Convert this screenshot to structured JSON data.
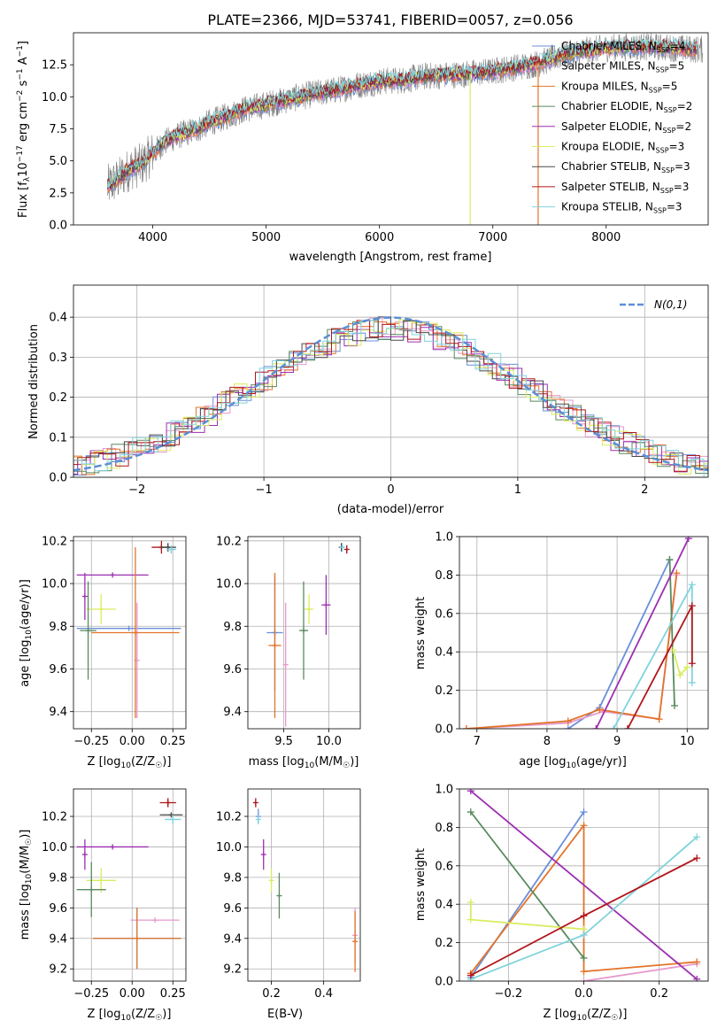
{
  "colors": {
    "chabrier_miles": "#6a8fd8",
    "salpeter_miles": "#e69acd",
    "kroupa_miles": "#e3742a",
    "chabrier_elodie": "#5a8a5f",
    "salpeter_elodie": "#9c2fb1",
    "kroupa_elodie": "#d9ec5e",
    "chabrier_stelib": "#4a4a4a",
    "salpeter_stelib": "#b0161b",
    "kroupa_stelib": "#7fd3dc",
    "data": "#808080",
    "gauss": "#5b8fd6"
  },
  "chart_data": [
    {
      "id": "spectrum",
      "type": "line",
      "title": "PLATE=2366, MJD=53741, FIBERID=0057, z=0.056",
      "xlabel": "wavelength [Angstrom, rest frame]",
      "ylabel": "Flux [f_λ 10^-17 erg cm^-2 s^-1 A^-1]",
      "xlim": [
        3300,
        8900
      ],
      "ylim": [
        0,
        15
      ],
      "xticks": [
        "4000",
        "5000",
        "6000",
        "7000",
        "8000"
      ],
      "yticks": [
        "0.0",
        "2.5",
        "5.0",
        "7.5",
        "10.0",
        "12.5"
      ],
      "grid": false,
      "legend_position": "top-right",
      "continuum": {
        "x": [
          3600,
          3700,
          3800,
          3900,
          4000,
          4100,
          4200,
          4300,
          4400,
          4500,
          4600,
          4800,
          5000,
          5200,
          5400,
          5600,
          5800,
          6000,
          6200,
          6400,
          6600,
          6800,
          7000,
          7200,
          7400,
          7600,
          7800,
          8000,
          8200,
          8400,
          8600,
          8800
        ],
        "y": [
          3.0,
          3.6,
          4.4,
          4.7,
          5.6,
          6.4,
          6.9,
          7.2,
          7.5,
          8.0,
          8.3,
          9.0,
          9.4,
          9.8,
          10.2,
          10.5,
          10.9,
          11.2,
          11.3,
          11.6,
          11.7,
          11.8,
          12.0,
          12.3,
          12.6,
          13.2,
          13.6,
          13.8,
          13.9,
          13.9,
          13.8,
          13.7
        ]
      },
      "series": [
        {
          "name": "Chabrier MILES, N_SSP=4",
          "label_base": "Chabrier MILES, N",
          "label_sub": "SSP",
          "label_tail": "=4",
          "color": "#6a8fd8"
        },
        {
          "name": "Salpeter MILES, N_SSP=5",
          "label_base": "Salpeter MILES, N",
          "label_sub": "SSP",
          "label_tail": "=5",
          "color": "#e69acd"
        },
        {
          "name": "Kroupa MILES, N_SSP=5",
          "label_base": "Kroupa MILES, N",
          "label_sub": "SSP",
          "label_tail": "=5",
          "color": "#e3742a"
        },
        {
          "name": "Chabrier ELODIE, N_SSP=2",
          "label_base": "Chabrier ELODIE, N",
          "label_sub": "SSP",
          "label_tail": "=2",
          "color": "#5a8a5f"
        },
        {
          "name": "Salpeter ELODIE, N_SSP=2",
          "label_base": "Salpeter ELODIE, N",
          "label_sub": "SSP",
          "label_tail": "=2",
          "color": "#9c2fb1"
        },
        {
          "name": "Kroupa ELODIE, N_SSP=3",
          "label_base": "Kroupa ELODIE, N",
          "label_sub": "SSP",
          "label_tail": "=3",
          "color": "#d9ec5e"
        },
        {
          "name": "Chabrier STELIB, N_SSP=3",
          "label_base": "Chabrier STELIB, N",
          "label_sub": "SSP",
          "label_tail": "=3",
          "color": "#4a4a4a"
        },
        {
          "name": "Salpeter STELIB, N_SSP=3",
          "label_base": "Salpeter STELIB, N",
          "label_sub": "SSP",
          "label_tail": "=3",
          "color": "#b0161b"
        },
        {
          "name": "Kroupa STELIB, N_SSP=3",
          "label_base": "Kroupa STELIB, N",
          "label_sub": "SSP",
          "label_tail": "=3",
          "color": "#7fd3dc"
        }
      ],
      "features": [
        {
          "x": 6800,
          "depth_to": 0.0,
          "color": "#d9ec5e"
        },
        {
          "x": 7400,
          "depth_to": 0.0,
          "color": "#e3742a"
        }
      ]
    },
    {
      "id": "residuals",
      "type": "line",
      "xlabel": "(data-model)/error",
      "ylabel": "Normed distribution",
      "xlim": [
        -2.5,
        2.5
      ],
      "ylim": [
        0,
        0.48
      ],
      "xticks": [
        "−2",
        "−1",
        "0",
        "1",
        "2"
      ],
      "yticks": [
        "0.0",
        "0.1",
        "0.2",
        "0.3",
        "0.4"
      ],
      "grid": true,
      "legend_position": "top-right",
      "legend": "N(0,1)",
      "gaussian": {
        "mean": 0,
        "sigma": 1
      }
    },
    {
      "id": "age-vs-Z",
      "type": "scatter",
      "xlabel": "Z [log10(Z/Z☉)]",
      "ylabel": "age  [log10(age/yr)]",
      "xlim": [
        -0.36,
        0.33
      ],
      "ylim": [
        9.32,
        10.22
      ],
      "xticks": [
        "−0.25",
        "0.00",
        "0.25"
      ],
      "yticks": [
        "9.4",
        "9.6",
        "9.8",
        "10.0",
        "10.2"
      ],
      "grid": true,
      "points": [
        {
          "x": 0.18,
          "y": 10.17,
          "xerr": 0.06,
          "yerr": 0.03,
          "color": "#b0161b"
        },
        {
          "x": 0.22,
          "y": 10.17,
          "xerr": 0.05,
          "yerr": 0.02,
          "color": "#4a4a4a"
        },
        {
          "x": 0.24,
          "y": 10.16,
          "xerr": 0.03,
          "yerr": 0.02,
          "color": "#7fd3dc"
        },
        {
          "x": -0.12,
          "y": 10.04,
          "xerr": 0.22,
          "yerr": 0.0,
          "color": "#9c2fb1"
        },
        {
          "x": -0.29,
          "y": 9.94,
          "xerr": 0.0,
          "yerr": 0.11,
          "color": "#9c2fb1"
        },
        {
          "x": -0.19,
          "y": 9.88,
          "xerr": 0.09,
          "yerr": 0.07,
          "color": "#d9ec5e"
        },
        {
          "x": -0.02,
          "y": 9.79,
          "xerr": 0.32,
          "yerr": 0.0,
          "color": "#6a8fd8"
        },
        {
          "x": -0.27,
          "y": 9.78,
          "xerr": 0.05,
          "yerr": 0.23,
          "color": "#5a8a5f"
        },
        {
          "x": 0.03,
          "y": 9.64,
          "xerr": 0.0,
          "yerr": 0.27,
          "color": "#e69acd"
        },
        {
          "x": 0.02,
          "y": 9.77,
          "xerr": 0.27,
          "yerr": 0.4,
          "color": "#e3742a"
        }
      ]
    },
    {
      "id": "age-vs-mass",
      "type": "scatter",
      "xlabel": "mass [log10(M/M☉)]",
      "ylabel": "",
      "xlim": [
        9.1,
        10.35
      ],
      "ylim": [
        9.32,
        10.22
      ],
      "xticks": [
        "9.5",
        "10.0"
      ],
      "yticks": [
        "9.4",
        "9.6",
        "9.8",
        "10.0",
        "10.2"
      ],
      "grid": true,
      "points": [
        {
          "x": 10.14,
          "y": 10.17,
          "xerr": 0.0,
          "yerr": 0.02,
          "color": "#4a4a4a"
        },
        {
          "x": 10.15,
          "y": 10.17,
          "xerr": 0.0,
          "yerr": 0.02,
          "color": "#7fd3dc"
        },
        {
          "x": 10.2,
          "y": 10.16,
          "xerr": 0.0,
          "yerr": 0.02,
          "color": "#b0161b"
        },
        {
          "x": 9.97,
          "y": 9.9,
          "xerr": 0.05,
          "yerr": 0.14,
          "color": "#9c2fb1"
        },
        {
          "x": 9.78,
          "y": 9.88,
          "xerr": 0.05,
          "yerr": 0.07,
          "color": "#d9ec5e"
        },
        {
          "x": 9.72,
          "y": 9.78,
          "xerr": 0.05,
          "yerr": 0.23,
          "color": "#5a8a5f"
        },
        {
          "x": 9.52,
          "y": 9.62,
          "xerr": 0.0,
          "yerr": 0.29,
          "color": "#e69acd"
        },
        {
          "x": 9.4,
          "y": 9.77,
          "xerr": 0.09,
          "yerr": 0.27,
          "color": "#6a8fd8"
        },
        {
          "x": 9.4,
          "y": 9.71,
          "xerr": 0.07,
          "yerr": 0.34,
          "color": "#e3742a"
        }
      ]
    },
    {
      "id": "weight-vs-age",
      "type": "line",
      "xlabel": "age  [log10(age/yr)]",
      "ylabel": "mass weight",
      "xlim": [
        6.75,
        10.3
      ],
      "ylim": [
        0,
        1
      ],
      "xticks": [
        "7",
        "8",
        "9",
        "10"
      ],
      "yticks": [
        "0.0",
        "0.2",
        "0.4",
        "0.6",
        "0.8",
        "1.0"
      ],
      "grid": true,
      "series": [
        {
          "color": "#6a8fd8",
          "x": [
            8.3,
            8.75,
            9.75
          ],
          "y": [
            0.0,
            0.11,
            0.88
          ]
        },
        {
          "color": "#e69acd",
          "x": [
            6.85,
            8.3,
            8.8,
            9.6,
            9.85
          ],
          "y": [
            0.0,
            0.03,
            0.09,
            0.05,
            0.8
          ]
        },
        {
          "color": "#e3742a",
          "x": [
            6.85,
            8.3,
            8.75,
            9.6,
            9.85
          ],
          "y": [
            0.0,
            0.04,
            0.1,
            0.05,
            0.81
          ]
        },
        {
          "color": "#5a8a5f",
          "x": [
            9.75,
            9.82
          ],
          "y": [
            0.88,
            0.12
          ]
        },
        {
          "color": "#9c2fb1",
          "x": [
            8.7,
            10.02
          ],
          "y": [
            0.0,
            0.99
          ]
        },
        {
          "color": "#d9ec5e",
          "x": [
            9.8,
            9.9,
            10.0
          ],
          "y": [
            0.41,
            0.28,
            0.32
          ]
        },
        {
          "color": "#7fd3dc",
          "x": [
            8.95,
            10.07,
            10.07
          ],
          "y": [
            0.0,
            0.75,
            0.24
          ]
        },
        {
          "color": "#b0161b",
          "x": [
            9.15,
            10.07,
            10.07
          ],
          "y": [
            0.0,
            0.64,
            0.34
          ]
        }
      ]
    },
    {
      "id": "mass-vs-Z",
      "type": "scatter",
      "xlabel": "Z [log10(Z/Z☉)]",
      "ylabel": "mass [log10(M/M☉)]",
      "xlim": [
        -0.36,
        0.33
      ],
      "ylim": [
        9.12,
        10.38
      ],
      "xticks": [
        "−0.25",
        "0.00",
        "0.25"
      ],
      "yticks": [
        "9.2",
        "9.4",
        "9.6",
        "9.8",
        "10.0",
        "10.2"
      ],
      "grid": true,
      "points": [
        {
          "x": 0.22,
          "y": 10.29,
          "xerr": 0.05,
          "yerr": 0.03,
          "color": "#b0161b"
        },
        {
          "x": 0.24,
          "y": 10.21,
          "xerr": 0.07,
          "yerr": 0.0,
          "color": "#4a4a4a"
        },
        {
          "x": 0.25,
          "y": 10.18,
          "xerr": 0.05,
          "yerr": 0.03,
          "color": "#7fd3dc"
        },
        {
          "x": -0.12,
          "y": 10.0,
          "xerr": 0.22,
          "yerr": 0.0,
          "color": "#9c2fb1"
        },
        {
          "x": -0.29,
          "y": 9.95,
          "xerr": 0.0,
          "yerr": 0.1,
          "color": "#9c2fb1"
        },
        {
          "x": -0.19,
          "y": 9.78,
          "xerr": 0.09,
          "yerr": 0.08,
          "color": "#d9ec5e"
        },
        {
          "x": -0.25,
          "y": 9.72,
          "xerr": 0.09,
          "yerr": 0.18,
          "color": "#5a8a5f"
        },
        {
          "x": 0.14,
          "y": 9.52,
          "xerr": 0.15,
          "yerr": 0.0,
          "color": "#e69acd"
        },
        {
          "x": 0.03,
          "y": 9.4,
          "xerr": 0.27,
          "yerr": 0.2,
          "color": "#6a8fd8"
        },
        {
          "x": 0.03,
          "y": 9.4,
          "xerr": 0.27,
          "yerr": 0.2,
          "color": "#e3742a"
        }
      ]
    },
    {
      "id": "mass-vs-ebv",
      "type": "scatter",
      "xlabel": "E(B-V)",
      "ylabel": "",
      "xlim": [
        0.11,
        0.54
      ],
      "ylim": [
        9.12,
        10.38
      ],
      "xticks": [
        "0.2",
        "0.4"
      ],
      "yticks": [
        "9.2",
        "9.4",
        "9.6",
        "9.8",
        "10.0",
        "10.2"
      ],
      "grid": true,
      "points": [
        {
          "x": 0.14,
          "y": 10.29,
          "xerr": 0.0,
          "yerr": 0.03,
          "color": "#b0161b"
        },
        {
          "x": 0.15,
          "y": 10.2,
          "xerr": 0.0,
          "yerr": 0.05,
          "color": "#6a8fd8"
        },
        {
          "x": 0.15,
          "y": 10.18,
          "xerr": 0.0,
          "yerr": 0.03,
          "color": "#7fd3dc"
        },
        {
          "x": 0.17,
          "y": 9.95,
          "xerr": 0.0,
          "yerr": 0.1,
          "color": "#9c2fb1"
        },
        {
          "x": 0.2,
          "y": 9.78,
          "xerr": 0.0,
          "yerr": 0.08,
          "color": "#d9ec5e"
        },
        {
          "x": 0.23,
          "y": 9.68,
          "xerr": 0.0,
          "yerr": 0.15,
          "color": "#5a8a5f"
        },
        {
          "x": 0.52,
          "y": 9.42,
          "xerr": 0.0,
          "yerr": 0.18,
          "color": "#e69acd"
        },
        {
          "x": 0.52,
          "y": 9.38,
          "xerr": 0.0,
          "yerr": 0.2,
          "color": "#e3742a"
        }
      ]
    },
    {
      "id": "weight-vs-Z",
      "type": "line",
      "xlabel": "Z [log10(Z/Z☉)]",
      "ylabel": "mass weight",
      "xlim": [
        -0.33,
        0.33
      ],
      "ylim": [
        0,
        1
      ],
      "xticks": [
        "−0.2",
        "0.0",
        "0.2"
      ],
      "yticks": [
        "0.0",
        "0.2",
        "0.4",
        "0.6",
        "0.8",
        "1.0"
      ],
      "grid": true,
      "series": [
        {
          "color": "#6a8fd8",
          "x": [
            -0.3,
            0.0
          ],
          "y": [
            0.02,
            0.88
          ]
        },
        {
          "color": "#e69acd",
          "x": [
            0.0,
            0.3
          ],
          "y": [
            0.0,
            0.09
          ]
        },
        {
          "color": "#e3742a",
          "x": [
            -0.3,
            0.0,
            0.0,
            0.3
          ],
          "y": [
            0.04,
            0.81,
            0.05,
            0.1
          ]
        },
        {
          "color": "#5a8a5f",
          "x": [
            -0.3,
            0.0
          ],
          "y": [
            0.88,
            0.12
          ]
        },
        {
          "color": "#9c2fb1",
          "x": [
            -0.3,
            0.3
          ],
          "y": [
            0.99,
            0.01
          ]
        },
        {
          "color": "#d9ec5e",
          "x": [
            -0.3,
            -0.3,
            0.0
          ],
          "y": [
            0.41,
            0.32,
            0.27
          ]
        },
        {
          "color": "#7fd3dc",
          "x": [
            -0.3,
            0.0,
            0.3
          ],
          "y": [
            0.01,
            0.24,
            0.75
          ]
        },
        {
          "color": "#b0161b",
          "x": [
            -0.3,
            0.0,
            0.3
          ],
          "y": [
            0.03,
            0.34,
            0.64
          ]
        }
      ]
    }
  ]
}
